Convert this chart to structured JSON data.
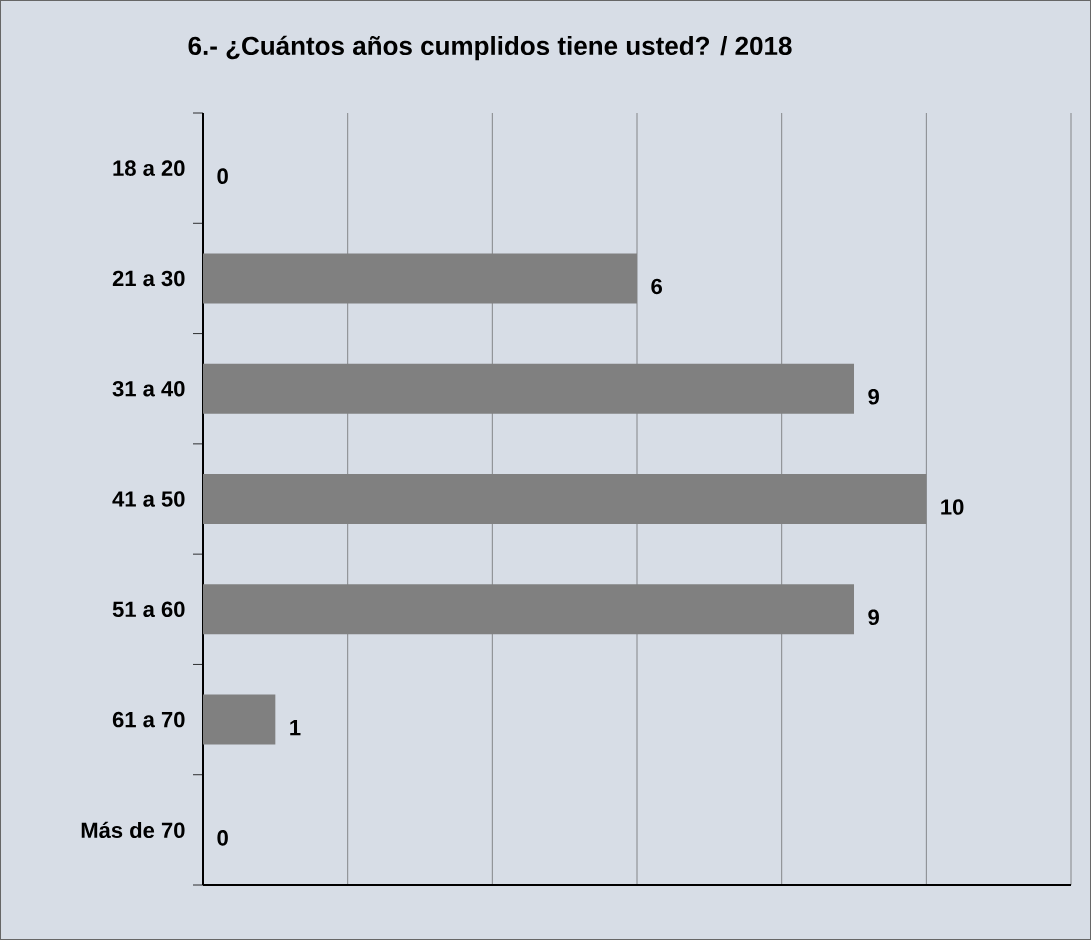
{
  "chart_data": {
    "type": "bar",
    "orientation": "horizontal",
    "title": "6.- ¿Cuántos años cumplidos tiene usted? / 2018",
    "categories": [
      "18 a 20",
      "21 a 30",
      "31 a 40",
      "41 a 50",
      "51 a 60",
      "61 a 70",
      "Más de 70"
    ],
    "values": [
      0,
      6,
      9,
      10,
      9,
      1,
      0
    ],
    "color": "#808080",
    "xlim": [
      0,
      12
    ],
    "xticks": [
      {
        "value": 0,
        "label": null
      },
      {
        "value": 2,
        "label": null
      },
      {
        "value": 4,
        "label": null
      },
      {
        "value": 6,
        "label": null
      },
      {
        "value": 8,
        "label": null
      },
      {
        "value": 10,
        "label": null
      },
      {
        "value": 12,
        "label": null
      }
    ],
    "tick_labels": "y",
    "grid": "x",
    "data_labels": true
  }
}
